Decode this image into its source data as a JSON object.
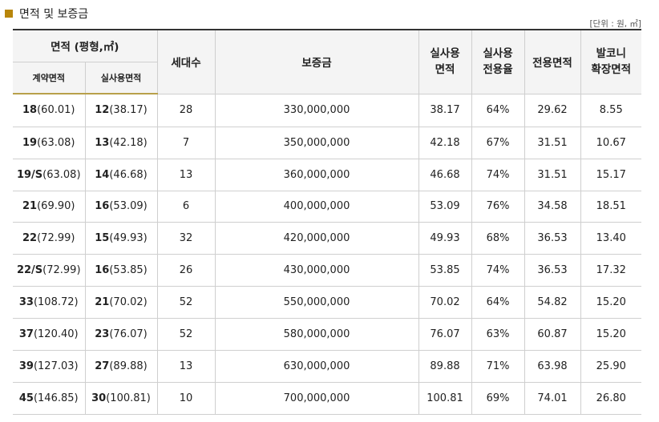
{
  "section": {
    "title": "면적 및 보증금",
    "unit": "[단위 : 원, ㎡]"
  },
  "header": {
    "area_group": "면적 (평형,㎡)",
    "contract_area": "계약면적",
    "real_area": "실사용면적",
    "households": "세대수",
    "deposit": "보증금",
    "real_use_area": "실사용\n면적",
    "real_use_ratio": "실사용\n전용율",
    "exclusive_area": "전용면적",
    "balcony": "발코니\n확장면적"
  },
  "rows": [
    {
      "c_type": "18",
      "c_area": "(60.01)",
      "r_type": "12",
      "r_area": "(38.17)",
      "households": "28",
      "deposit": "330,000,000",
      "real_use_area": "38.17",
      "ratio": "64%",
      "exclusive": "29.62",
      "balcony": "8.55"
    },
    {
      "c_type": "19",
      "c_area": "(63.08)",
      "r_type": "13",
      "r_area": "(42.18)",
      "households": "7",
      "deposit": "350,000,000",
      "real_use_area": "42.18",
      "ratio": "67%",
      "exclusive": "31.51",
      "balcony": "10.67"
    },
    {
      "c_type": "19/S",
      "c_area": "(63.08)",
      "r_type": "14",
      "r_area": "(46.68)",
      "households": "13",
      "deposit": "360,000,000",
      "real_use_area": "46.68",
      "ratio": "74%",
      "exclusive": "31.51",
      "balcony": "15.17"
    },
    {
      "c_type": "21",
      "c_area": "(69.90)",
      "r_type": "16",
      "r_area": "(53.09)",
      "households": "6",
      "deposit": "400,000,000",
      "real_use_area": "53.09",
      "ratio": "76%",
      "exclusive": "34.58",
      "balcony": "18.51"
    },
    {
      "c_type": "22",
      "c_area": "(72.99)",
      "r_type": "15",
      "r_area": "(49.93)",
      "households": "32",
      "deposit": "420,000,000",
      "real_use_area": "49.93",
      "ratio": "68%",
      "exclusive": "36.53",
      "balcony": "13.40"
    },
    {
      "c_type": "22/S",
      "c_area": "(72.99)",
      "r_type": "16",
      "r_area": "(53.85)",
      "households": "26",
      "deposit": "430,000,000",
      "real_use_area": "53.85",
      "ratio": "74%",
      "exclusive": "36.53",
      "balcony": "17.32"
    },
    {
      "c_type": "33",
      "c_area": "(108.72)",
      "r_type": "21",
      "r_area": "(70.02)",
      "households": "52",
      "deposit": "550,000,000",
      "real_use_area": "70.02",
      "ratio": "64%",
      "exclusive": "54.82",
      "balcony": "15.20"
    },
    {
      "c_type": "37",
      "c_area": "(120.40)",
      "r_type": "23",
      "r_area": "(76.07)",
      "households": "52",
      "deposit": "580,000,000",
      "real_use_area": "76.07",
      "ratio": "63%",
      "exclusive": "60.87",
      "balcony": "15.20"
    },
    {
      "c_type": "39",
      "c_area": "(127.03)",
      "r_type": "27",
      "r_area": "(89.88)",
      "households": "13",
      "deposit": "630,000,000",
      "real_use_area": "89.88",
      "ratio": "71%",
      "exclusive": "63.98",
      "balcony": "25.90"
    },
    {
      "c_type": "45",
      "c_area": "(146.85)",
      "r_type": "30",
      "r_area": "(100.81)",
      "households": "10",
      "deposit": "700,000,000",
      "real_use_area": "100.81",
      "ratio": "69%",
      "exclusive": "74.01",
      "balcony": "26.80"
    }
  ]
}
